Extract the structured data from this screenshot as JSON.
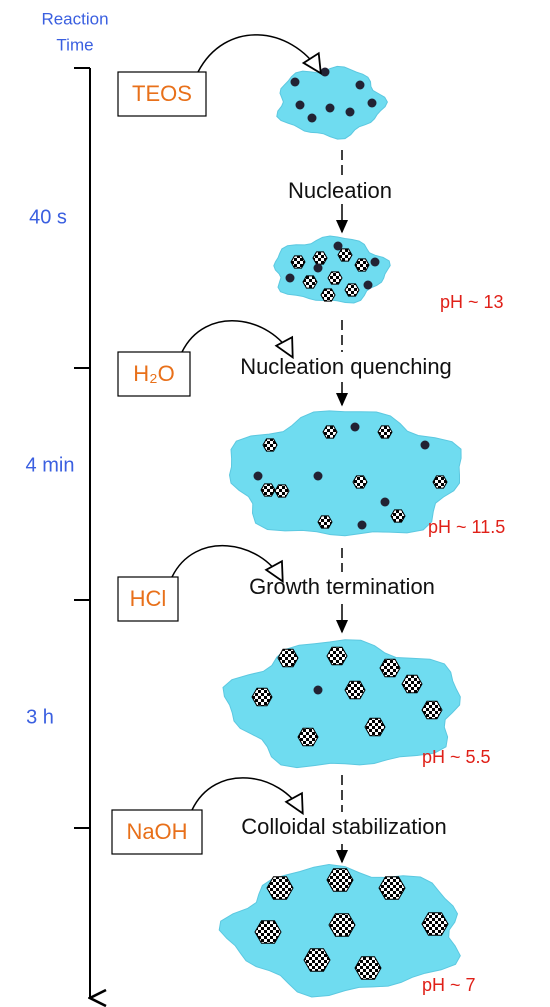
{
  "axis": {
    "title_lines": [
      "Reaction",
      "Time"
    ],
    "periods": [
      "40 s",
      "4 min",
      "3 h"
    ]
  },
  "reagents": [
    "TEOS",
    "H₂O",
    "HCl",
    "NaOH"
  ],
  "steps": [
    "Nucleation",
    "Nucleation quenching",
    "Growth termination",
    "Colloidal stabilization"
  ],
  "ph_labels": [
    "pH ~ 13",
    "pH ~ 11.5",
    "pH ~ 5.5",
    "pH ~ 7"
  ]
}
